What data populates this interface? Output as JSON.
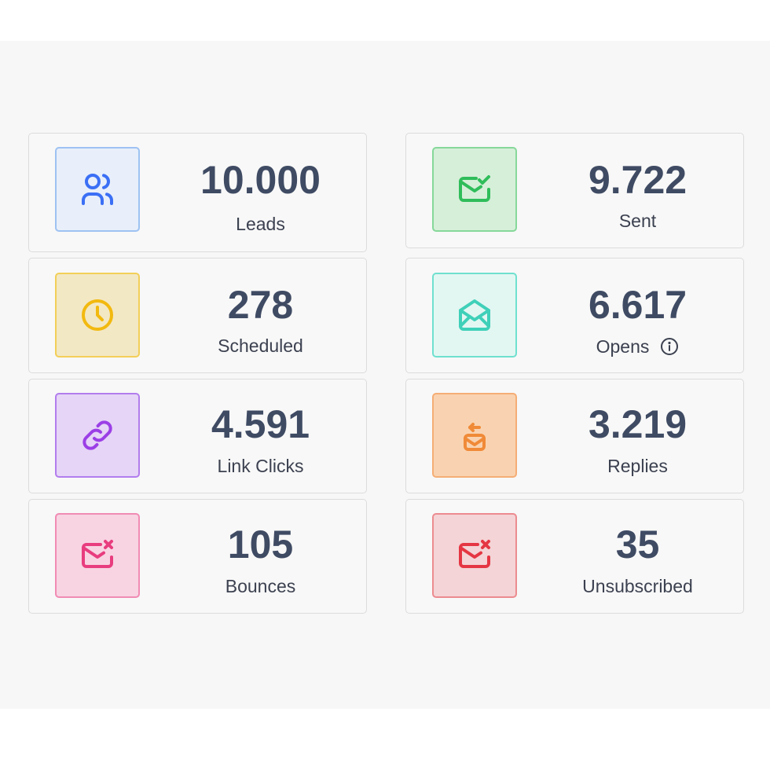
{
  "stats": [
    {
      "value": "10.000",
      "label": "Leads",
      "icon": "users-icon",
      "colors": {
        "bg": "#e8effa",
        "border": "#9ec2f2",
        "icon": "#3b6ff5"
      }
    },
    {
      "value": "9.722",
      "label": "Sent",
      "icon": "mail-check-icon",
      "colors": {
        "bg": "#d6efd9",
        "border": "#86d89a",
        "icon": "#2fbd5a"
      }
    },
    {
      "value": "278",
      "label": "Scheduled",
      "icon": "clock-icon",
      "colors": {
        "bg": "#f3e8c4",
        "border": "#f2cf58",
        "icon": "#f2b90f"
      }
    },
    {
      "value": "6.617",
      "label": "Opens",
      "icon": "mail-opened-icon",
      "info_icon": "info-icon",
      "colors": {
        "bg": "#e3f7f2",
        "border": "#6fe0cf",
        "icon": "#3fd0b9"
      }
    },
    {
      "value": "4.591",
      "label": "Link Clicks",
      "icon": "link-icon",
      "colors": {
        "bg": "#e6d5f7",
        "border": "#b27ded",
        "icon": "#9b3fe6"
      }
    },
    {
      "value": "3.219",
      "label": "Replies",
      "icon": "mail-reply-icon",
      "colors": {
        "bg": "#f9d3b1",
        "border": "#f5ad75",
        "icon": "#f08a38"
      }
    },
    {
      "value": "105",
      "label": "Bounces",
      "icon": "mail-x-icon",
      "colors": {
        "bg": "#f8d4e2",
        "border": "#f18bb4",
        "icon": "#e83d7f"
      }
    },
    {
      "value": "35",
      "label": "Unsubscribed",
      "icon": "mail-x-icon",
      "colors": {
        "bg": "#f4d4d6",
        "border": "#ec8b90",
        "icon": "#e53643"
      }
    }
  ]
}
